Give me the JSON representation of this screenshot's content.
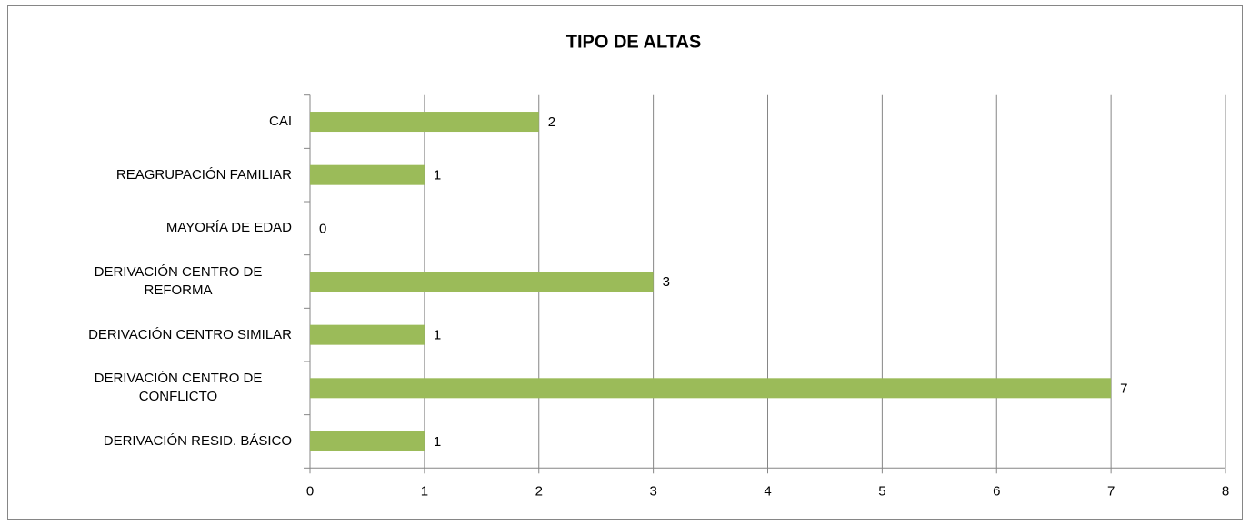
{
  "chart_data": {
    "type": "bar",
    "orientation": "horizontal",
    "title": "TIPO DE ALTAS",
    "categories": [
      "CAI",
      "REAGRUPACIÓN FAMILIAR",
      "MAYORÍA DE EDAD",
      "DERIVACIÓN CENTRO DE REFORMA",
      "DERIVACIÓN CENTRO SIMILAR",
      "DERIVACIÓN CENTRO DE CONFLICTO",
      "DERIVACIÓN RESID. BÁSICO"
    ],
    "values": [
      2,
      1,
      0,
      3,
      1,
      7,
      1
    ],
    "color": "#9bbb59",
    "title_color": "#4f6228",
    "xlim": [
      0,
      8
    ],
    "xticks": [
      0,
      1,
      2,
      3,
      4,
      5,
      6,
      7,
      8
    ],
    "grid": true
  }
}
